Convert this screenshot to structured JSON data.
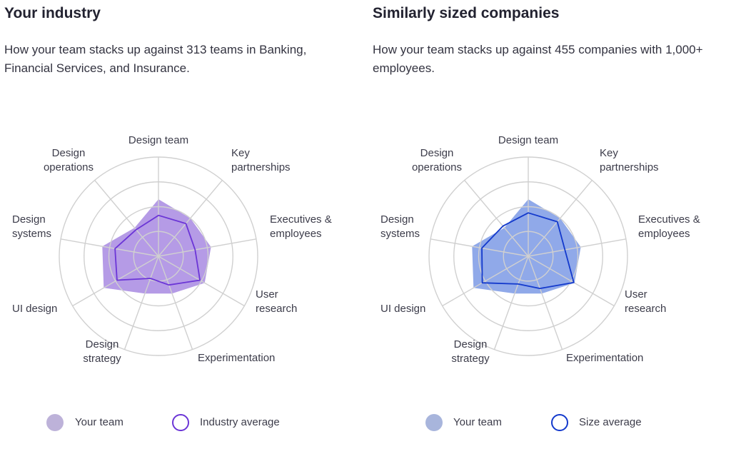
{
  "colors": {
    "grid": "#d0d0d0",
    "industry_fill": "#b59be6",
    "industry_line": "#6b35d6",
    "industry_swatch": "#bdb2d9",
    "size_fill": "#90a9e9",
    "size_line": "#1339cc",
    "size_swatch": "#a8b5dc"
  },
  "chart_data": [
    {
      "type": "radar",
      "title": "Your industry",
      "subtitle": "How your team stacks up against 313 teams in Banking, Financial Services, and Insurance.",
      "axes": [
        "Design team",
        "Key partnerships",
        "Executives & employees",
        "User research",
        "Experimentation",
        "Design strategy",
        "UI design",
        "Design systems",
        "Design operations"
      ],
      "rlim": [
        0,
        4
      ],
      "rings": 4,
      "series": [
        {
          "name": "Your team",
          "style": "fill",
          "values": [
            2.3,
            2.0,
            2.15,
            2.15,
            1.6,
            1.6,
            2.55,
            2.3,
            1.5
          ]
        },
        {
          "name": "Industry average",
          "style": "line",
          "values": [
            1.65,
            1.72,
            1.5,
            1.93,
            1.23,
            0.95,
            1.93,
            1.78,
            1.4
          ]
        }
      ]
    },
    {
      "type": "radar",
      "title": "Similarly sized companies",
      "subtitle": "How your team stacks up against 455 companies with 1,000+ employees.",
      "axes": [
        "Design team",
        "Key partnerships",
        "Executives & employees",
        "User research",
        "Experimentation",
        "Design strategy",
        "UI design",
        "Design systems",
        "Design operations"
      ],
      "rlim": [
        0,
        4
      ],
      "rings": 4,
      "series": [
        {
          "name": "Your team",
          "style": "fill",
          "values": [
            2.3,
            2.0,
            2.15,
            2.15,
            1.6,
            1.6,
            2.55,
            2.3,
            1.5
          ]
        },
        {
          "name": "Size average",
          "style": "line",
          "values": [
            1.75,
            1.82,
            1.5,
            2.12,
            1.38,
            1.19,
            2.14,
            1.9,
            1.59
          ]
        }
      ]
    }
  ],
  "label_text": {
    "design_team": "Design team",
    "key_partnerships": "Key\npartnerships",
    "executives": "Executives &\nemployees",
    "user_research": "User\nresearch",
    "experimentation": "Experimentation",
    "design_strategy": "Design\nstrategy",
    "ui_design": "UI design",
    "design_systems": "Design\nsystems",
    "design_operations": "Design\noperations"
  }
}
